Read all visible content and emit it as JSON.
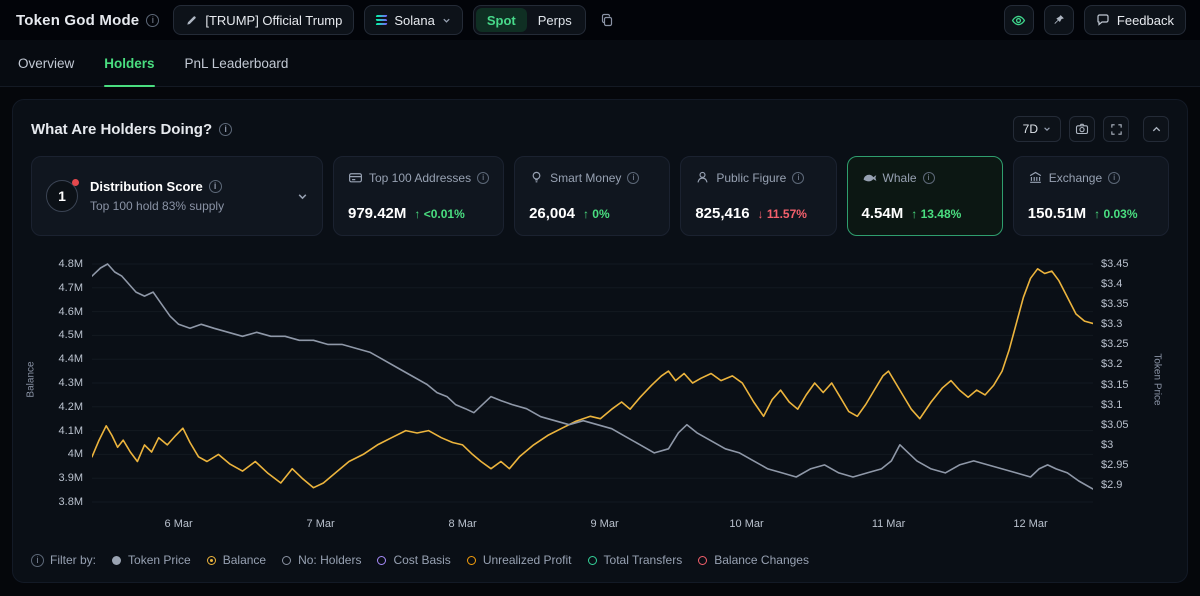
{
  "header": {
    "title": "Token God Mode",
    "token_button": "[TRUMP] Official Trump",
    "chain_select": "Solana",
    "market_tabs": {
      "spot": "Spot",
      "perps": "Perps",
      "active": "Spot"
    },
    "feedback_label": "Feedback"
  },
  "tabs": [
    {
      "label": "Overview",
      "active": false
    },
    {
      "label": "Holders",
      "active": true
    },
    {
      "label": "PnL Leaderboard",
      "active": false
    }
  ],
  "panel": {
    "title": "What Are Holders Doing?",
    "range_select": "7D"
  },
  "cards": {
    "distribution": {
      "rank": "1",
      "title": "Distribution Score",
      "subtitle": "Top 100 hold 83% supply"
    },
    "stats": [
      {
        "label": "Top 100 Addresses",
        "value": "979.42M",
        "change": "<0.01%",
        "dir": "up",
        "selected": false
      },
      {
        "label": "Smart Money",
        "value": "26,004",
        "change": "0%",
        "dir": "up",
        "selected": false
      },
      {
        "label": "Public Figure",
        "value": "825,416",
        "change": "11.57%",
        "dir": "down",
        "selected": false
      },
      {
        "label": "Whale",
        "value": "4.54M",
        "change": "13.48%",
        "dir": "up",
        "selected": true
      },
      {
        "label": "Exchange",
        "value": "150.51M",
        "change": "0.03%",
        "dir": "up",
        "selected": false
      }
    ]
  },
  "chart_data": {
    "type": "line",
    "x_axis": {
      "labels": [
        "6 Mar",
        "7 Mar",
        "8 Mar",
        "9 Mar",
        "10 Mar",
        "11 Mar",
        "12 Mar"
      ],
      "label_days": [
        6,
        7,
        8,
        9,
        10,
        11,
        12
      ],
      "domain": [
        5.39,
        12.44
      ]
    },
    "left_axis": {
      "title": "Balance",
      "labels": [
        "4.8M",
        "4.7M",
        "4.6M",
        "4.5M",
        "4.4M",
        "4.3M",
        "4.2M",
        "4.1M",
        "4M",
        "3.9M",
        "3.8M"
      ],
      "ticks": [
        4.8,
        4.7,
        4.6,
        4.5,
        4.4,
        4.3,
        4.2,
        4.1,
        4.0,
        3.9,
        3.8
      ],
      "max": 4.8,
      "min": 3.8,
      "y_top": 10,
      "y_bottom": 248
    },
    "right_axis": {
      "title": "Token Price",
      "labels": [
        "$3.45",
        "$3.4",
        "$3.35",
        "$3.3",
        "$3.25",
        "$3.2",
        "$3.15",
        "$3.1",
        "$3.05",
        "$3",
        "$2.95",
        "$2.9"
      ],
      "ticks": [
        3.45,
        3.4,
        3.35,
        3.3,
        3.25,
        3.2,
        3.15,
        3.1,
        3.05,
        3.0,
        2.95,
        2.9
      ],
      "max": 3.45,
      "min": 2.9,
      "y_top": 10,
      "y_bottom": 231
    },
    "series": [
      {
        "name": "Balance",
        "axis": "left",
        "color": "#ecb43d",
        "points": [
          [
            5.39,
            3.99
          ],
          [
            5.44,
            4.06
          ],
          [
            5.49,
            4.12
          ],
          [
            5.53,
            4.08
          ],
          [
            5.57,
            4.03
          ],
          [
            5.61,
            4.06
          ],
          [
            5.66,
            4.01
          ],
          [
            5.71,
            3.97
          ],
          [
            5.76,
            4.04
          ],
          [
            5.81,
            4.01
          ],
          [
            5.86,
            4.07
          ],
          [
            5.92,
            4.04
          ],
          [
            5.98,
            4.08
          ],
          [
            6.03,
            4.11
          ],
          [
            6.08,
            4.05
          ],
          [
            6.14,
            3.99
          ],
          [
            6.2,
            3.97
          ],
          [
            6.28,
            4.0
          ],
          [
            6.36,
            3.96
          ],
          [
            6.45,
            3.93
          ],
          [
            6.54,
            3.97
          ],
          [
            6.63,
            3.92
          ],
          [
            6.72,
            3.88
          ],
          [
            6.8,
            3.94
          ],
          [
            6.87,
            3.9
          ],
          [
            6.95,
            3.86
          ],
          [
            7.02,
            3.88
          ],
          [
            7.1,
            3.92
          ],
          [
            7.2,
            3.97
          ],
          [
            7.3,
            4.0
          ],
          [
            7.4,
            4.04
          ],
          [
            7.5,
            4.07
          ],
          [
            7.6,
            4.1
          ],
          [
            7.68,
            4.09
          ],
          [
            7.76,
            4.1
          ],
          [
            7.85,
            4.07
          ],
          [
            7.93,
            4.05
          ],
          [
            8.0,
            4.04
          ],
          [
            8.07,
            4.0
          ],
          [
            8.13,
            3.97
          ],
          [
            8.2,
            3.94
          ],
          [
            8.27,
            3.97
          ],
          [
            8.33,
            3.94
          ],
          [
            8.4,
            3.99
          ],
          [
            8.5,
            4.04
          ],
          [
            8.6,
            4.08
          ],
          [
            8.7,
            4.11
          ],
          [
            8.8,
            4.14
          ],
          [
            8.9,
            4.16
          ],
          [
            8.97,
            4.15
          ],
          [
            9.05,
            4.19
          ],
          [
            9.12,
            4.22
          ],
          [
            9.18,
            4.19
          ],
          [
            9.25,
            4.24
          ],
          [
            9.33,
            4.29
          ],
          [
            9.4,
            4.33
          ],
          [
            9.45,
            4.35
          ],
          [
            9.5,
            4.31
          ],
          [
            9.56,
            4.34
          ],
          [
            9.62,
            4.3
          ],
          [
            9.68,
            4.32
          ],
          [
            9.75,
            4.34
          ],
          [
            9.82,
            4.31
          ],
          [
            9.9,
            4.33
          ],
          [
            9.97,
            4.3
          ],
          [
            10.05,
            4.22
          ],
          [
            10.12,
            4.16
          ],
          [
            10.18,
            4.23
          ],
          [
            10.24,
            4.27
          ],
          [
            10.3,
            4.22
          ],
          [
            10.36,
            4.19
          ],
          [
            10.42,
            4.25
          ],
          [
            10.48,
            4.3
          ],
          [
            10.54,
            4.26
          ],
          [
            10.6,
            4.3
          ],
          [
            10.66,
            4.24
          ],
          [
            10.72,
            4.18
          ],
          [
            10.78,
            4.16
          ],
          [
            10.84,
            4.21
          ],
          [
            10.9,
            4.27
          ],
          [
            10.96,
            4.33
          ],
          [
            11.0,
            4.35
          ],
          [
            11.05,
            4.3
          ],
          [
            11.1,
            4.25
          ],
          [
            11.16,
            4.19
          ],
          [
            11.22,
            4.15
          ],
          [
            11.3,
            4.22
          ],
          [
            11.38,
            4.28
          ],
          [
            11.44,
            4.31
          ],
          [
            11.5,
            4.27
          ],
          [
            11.56,
            4.24
          ],
          [
            11.62,
            4.27
          ],
          [
            11.68,
            4.25
          ],
          [
            11.74,
            4.29
          ],
          [
            11.8,
            4.35
          ],
          [
            11.85,
            4.44
          ],
          [
            11.9,
            4.55
          ],
          [
            11.95,
            4.66
          ],
          [
            12.0,
            4.74
          ],
          [
            12.05,
            4.78
          ],
          [
            12.1,
            4.76
          ],
          [
            12.15,
            4.77
          ],
          [
            12.2,
            4.73
          ],
          [
            12.26,
            4.66
          ],
          [
            12.32,
            4.59
          ],
          [
            12.38,
            4.56
          ],
          [
            12.44,
            4.55
          ]
        ]
      },
      {
        "name": "Token Price",
        "axis": "right",
        "color": "#8f98a8",
        "points": [
          [
            5.39,
            3.42
          ],
          [
            5.45,
            3.44
          ],
          [
            5.5,
            3.45
          ],
          [
            5.55,
            3.43
          ],
          [
            5.6,
            3.42
          ],
          [
            5.65,
            3.4
          ],
          [
            5.7,
            3.38
          ],
          [
            5.76,
            3.37
          ],
          [
            5.82,
            3.38
          ],
          [
            5.88,
            3.35
          ],
          [
            5.94,
            3.32
          ],
          [
            6.0,
            3.3
          ],
          [
            6.08,
            3.29
          ],
          [
            6.16,
            3.3
          ],
          [
            6.25,
            3.29
          ],
          [
            6.35,
            3.28
          ],
          [
            6.45,
            3.27
          ],
          [
            6.55,
            3.28
          ],
          [
            6.65,
            3.27
          ],
          [
            6.75,
            3.27
          ],
          [
            6.85,
            3.26
          ],
          [
            6.95,
            3.26
          ],
          [
            7.05,
            3.25
          ],
          [
            7.15,
            3.25
          ],
          [
            7.25,
            3.24
          ],
          [
            7.35,
            3.23
          ],
          [
            7.45,
            3.21
          ],
          [
            7.55,
            3.19
          ],
          [
            7.65,
            3.17
          ],
          [
            7.75,
            3.15
          ],
          [
            7.82,
            3.13
          ],
          [
            7.89,
            3.12
          ],
          [
            7.95,
            3.1
          ],
          [
            8.02,
            3.09
          ],
          [
            8.08,
            3.08
          ],
          [
            8.14,
            3.1
          ],
          [
            8.2,
            3.12
          ],
          [
            8.27,
            3.11
          ],
          [
            8.35,
            3.1
          ],
          [
            8.45,
            3.09
          ],
          [
            8.55,
            3.07
          ],
          [
            8.65,
            3.06
          ],
          [
            8.75,
            3.05
          ],
          [
            8.85,
            3.06
          ],
          [
            8.95,
            3.05
          ],
          [
            9.05,
            3.04
          ],
          [
            9.15,
            3.02
          ],
          [
            9.25,
            3.0
          ],
          [
            9.35,
            2.98
          ],
          [
            9.45,
            2.99
          ],
          [
            9.52,
            3.03
          ],
          [
            9.58,
            3.05
          ],
          [
            9.65,
            3.03
          ],
          [
            9.75,
            3.01
          ],
          [
            9.85,
            2.99
          ],
          [
            9.95,
            2.98
          ],
          [
            10.05,
            2.96
          ],
          [
            10.15,
            2.94
          ],
          [
            10.25,
            2.93
          ],
          [
            10.35,
            2.92
          ],
          [
            10.45,
            2.94
          ],
          [
            10.55,
            2.95
          ],
          [
            10.65,
            2.93
          ],
          [
            10.75,
            2.92
          ],
          [
            10.85,
            2.93
          ],
          [
            10.95,
            2.94
          ],
          [
            11.02,
            2.96
          ],
          [
            11.08,
            3.0
          ],
          [
            11.14,
            2.98
          ],
          [
            11.2,
            2.96
          ],
          [
            11.3,
            2.94
          ],
          [
            11.4,
            2.93
          ],
          [
            11.5,
            2.95
          ],
          [
            11.6,
            2.96
          ],
          [
            11.7,
            2.95
          ],
          [
            11.8,
            2.94
          ],
          [
            11.9,
            2.93
          ],
          [
            12.0,
            2.92
          ],
          [
            12.06,
            2.94
          ],
          [
            12.12,
            2.95
          ],
          [
            12.18,
            2.94
          ],
          [
            12.26,
            2.93
          ],
          [
            12.34,
            2.91
          ],
          [
            12.44,
            2.89
          ]
        ]
      }
    ],
    "grid": "horizontal-faint",
    "legend_position": "bottom"
  },
  "filter_bar": {
    "label": "Filter by:",
    "items": [
      {
        "label": "Token Price",
        "color": "#9aa3b2",
        "style": "solid",
        "active": true
      },
      {
        "label": "Balance",
        "color": "#ecb43d",
        "style": "radio",
        "active": true
      },
      {
        "label": "No: Holders",
        "color": "#8b93a3",
        "style": "ring",
        "active": false
      },
      {
        "label": "Cost Basis",
        "color": "#a78bfa",
        "style": "ring",
        "active": false
      },
      {
        "label": "Unrealized Profit",
        "color": "#f59e0b",
        "style": "ring",
        "active": false
      },
      {
        "label": "Total Transfers",
        "color": "#34d399",
        "style": "ring",
        "active": false
      },
      {
        "label": "Balance Changes",
        "color": "#f4606c",
        "style": "ring",
        "active": false
      }
    ]
  },
  "icons": {
    "info": "i",
    "arrow_up": "↑",
    "arrow_down": "↓"
  },
  "colors": {
    "accent_green": "#4ade80",
    "positive": "#4ade80",
    "negative": "#f4606c",
    "balance_line": "#ecb43d",
    "price_line": "#8f98a8",
    "selected_card_border": "#2f9e6e",
    "alert_red": "#e5484d"
  }
}
